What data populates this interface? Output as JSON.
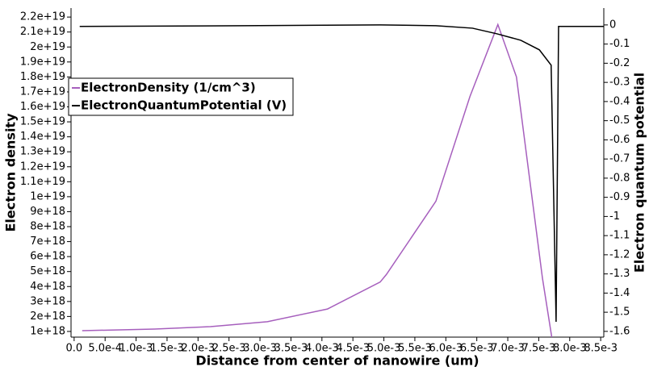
{
  "chart_data": {
    "type": "line",
    "xlabel": "Distance from center of nanowire (um)",
    "ylabel": "Electron density",
    "y2label": "Electron quantum potential",
    "xlim": [
      -5e-05,
      0.00855
    ],
    "ylim": [
      6.2e+17,
      2.26e+19
    ],
    "y2lim": [
      -1.63,
      0.088
    ],
    "xticks": [
      {
        "value": 0,
        "label": "0.0"
      },
      {
        "value": 0.0005,
        "label": "5.0e-4"
      },
      {
        "value": 0.001,
        "label": "1.0e-3"
      },
      {
        "value": 0.0015,
        "label": "1.5e-3"
      },
      {
        "value": 0.002,
        "label": "2.0e-3"
      },
      {
        "value": 0.0025,
        "label": "2.5e-3"
      },
      {
        "value": 0.003,
        "label": "3.0e-3"
      },
      {
        "value": 0.0035,
        "label": "3.5e-3"
      },
      {
        "value": 0.004,
        "label": "4.0e-3"
      },
      {
        "value": 0.0045,
        "label": "4.5e-3"
      },
      {
        "value": 0.005,
        "label": "5.0e-3"
      },
      {
        "value": 0.0055,
        "label": "5.5e-3"
      },
      {
        "value": 0.006,
        "label": "6.0e-3"
      },
      {
        "value": 0.0065,
        "label": "6.5e-3"
      },
      {
        "value": 0.007,
        "label": "7.0e-3"
      },
      {
        "value": 0.0075,
        "label": "7.5e-3"
      },
      {
        "value": 0.008,
        "label": "8.0e-3"
      },
      {
        "value": 0.0085,
        "label": "8.5e-3"
      }
    ],
    "yticks": [
      {
        "value": 1e+18,
        "label": "1e+18"
      },
      {
        "value": 2e+18,
        "label": "2e+18"
      },
      {
        "value": 3e+18,
        "label": "3e+18"
      },
      {
        "value": 4e+18,
        "label": "4e+18"
      },
      {
        "value": 5e+18,
        "label": "5e+18"
      },
      {
        "value": 6e+18,
        "label": "6e+18"
      },
      {
        "value": 7e+18,
        "label": "7e+18"
      },
      {
        "value": 8e+18,
        "label": "8e+18"
      },
      {
        "value": 9e+18,
        "label": "9e+18"
      },
      {
        "value": 1e+19,
        "label": "1e+19"
      },
      {
        "value": 1.1e+19,
        "label": "1.1e+19"
      },
      {
        "value": 1.2e+19,
        "label": "1.2e+19"
      },
      {
        "value": 1.3e+19,
        "label": "1.3e+19"
      },
      {
        "value": 1.4e+19,
        "label": "1.4e+19"
      },
      {
        "value": 1.5e+19,
        "label": "1.5e+19"
      },
      {
        "value": 1.6e+19,
        "label": "1.6e+19"
      },
      {
        "value": 1.7e+19,
        "label": "1.7e+19"
      },
      {
        "value": 1.8e+19,
        "label": "1.8e+19"
      },
      {
        "value": 1.9e+19,
        "label": "1.9e+19"
      },
      {
        "value": 2e+19,
        "label": "2e+19"
      },
      {
        "value": 2.1e+19,
        "label": "2.1e+19"
      },
      {
        "value": 2.2e+19,
        "label": "2.2e+19"
      }
    ],
    "y2ticks": [
      0,
      -0.1,
      -0.2,
      -0.3,
      -0.4,
      -0.5,
      -0.6,
      -0.7,
      -0.8,
      -0.9,
      -1,
      -1.1,
      -1.2,
      -1.3,
      -1.4,
      -1.5,
      -1.6
    ],
    "legend": "upper left",
    "series": [
      {
        "name": "ElectronDensity (1/cm^3)",
        "color": "#a65fbd",
        "x": [
          0.00013,
          0.0013,
          0.0022,
          0.00312,
          0.00409,
          0.00494,
          0.00504,
          0.00584,
          0.00639,
          0.00684,
          0.00714,
          0.00756,
          0.00771
        ],
        "values": [
          1.05e+18,
          1.16e+18,
          1.32e+18,
          1.65e+18,
          2.5e+18,
          4.3e+18,
          4.8e+18,
          9.7e+18,
          1.67e+19,
          2.15e+19,
          1.8e+19,
          4.55e+18,
          6.2e+17
        ]
      },
      {
        "name": "ElectronQuantumPotential (V)",
        "color": "#000000",
        "axis": "y2",
        "x": [
          9e-05,
          0.00273,
          0.00494,
          0.00584,
          0.00643,
          0.00682,
          0.00721,
          0.00751,
          0.0077,
          0.00778,
          0.00782,
          0.00855
        ],
        "values": [
          -0.008,
          -0.004,
          0,
          -0.004,
          -0.017,
          -0.046,
          -0.08,
          -0.13,
          -0.21,
          -1.55,
          -0.008,
          -0.008
        ]
      }
    ]
  }
}
